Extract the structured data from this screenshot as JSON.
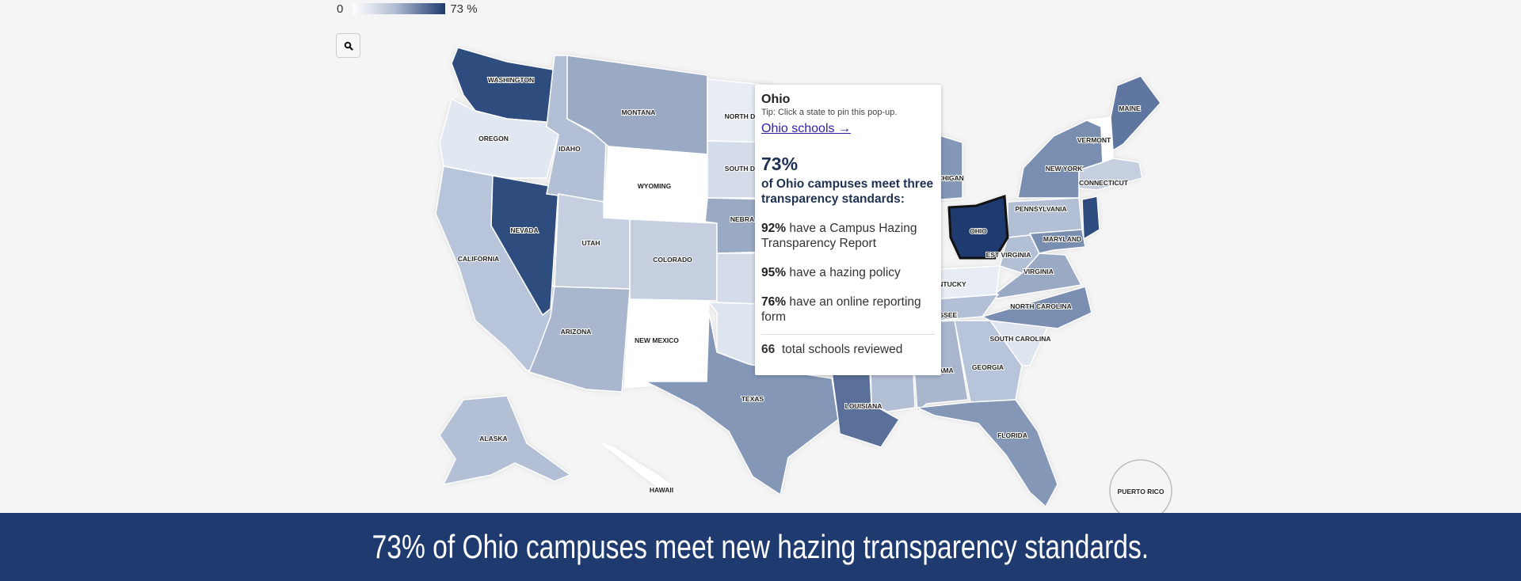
{
  "legend": {
    "min_label": "0",
    "max_label": "73 %",
    "min_color": "#ffffff",
    "max_color": "#1f3a6e"
  },
  "zoom_button": {
    "icon": "search-icon"
  },
  "states": [
    {
      "id": "WA",
      "label": "WASHINGTON",
      "fill": "#2f4c7e"
    },
    {
      "id": "OR",
      "label": "OREGON",
      "fill": "#e2e8f2"
    },
    {
      "id": "CA",
      "label": "CALIFORNIA",
      "fill": "#b8c4da"
    },
    {
      "id": "NV",
      "label": "NEVADA",
      "fill": "#2f4c7e"
    },
    {
      "id": "ID",
      "label": "IDAHO",
      "fill": "#b3bfd5"
    },
    {
      "id": "MT",
      "label": "MONTANA",
      "fill": "#9aa9c4"
    },
    {
      "id": "WY",
      "label": "WYOMING",
      "fill": "#ffffff"
    },
    {
      "id": "UT",
      "label": "UTAH",
      "fill": "#c5cfe0"
    },
    {
      "id": "CO",
      "label": "COLORADO",
      "fill": "#c5cfe0"
    },
    {
      "id": "AZ",
      "label": "ARIZONA",
      "fill": "#a9b6ce"
    },
    {
      "id": "NM",
      "label": "NEW MEXICO",
      "fill": "#ffffff"
    },
    {
      "id": "ND",
      "label": "NORTH DA",
      "fill": "#e8edf5"
    },
    {
      "id": "SD",
      "label": "SOUTH DA",
      "fill": "#d5dce9"
    },
    {
      "id": "NE",
      "label": "NEBRA",
      "fill": "#9aa9c4"
    },
    {
      "id": "KS",
      "label": "",
      "fill": "#d5dce9"
    },
    {
      "id": "OK",
      "label": "",
      "fill": "#dfe5ef"
    },
    {
      "id": "TX",
      "label": "TEXAS",
      "fill": "#8497b7"
    },
    {
      "id": "LA",
      "label": "LOUISIANA",
      "fill": "#5a709b"
    },
    {
      "id": "MS",
      "label": "",
      "fill": "#b3bfd5"
    },
    {
      "id": "AL",
      "label": "AMA",
      "fill": "#a9b6ce"
    },
    {
      "id": "GA",
      "label": "GEORGIA",
      "fill": "#b8c4da"
    },
    {
      "id": "FL",
      "label": "FLORIDA",
      "fill": "#8497b7"
    },
    {
      "id": "SC",
      "label": "SOUTH CAROLINA",
      "fill": "#dfe5ef"
    },
    {
      "id": "NC",
      "label": "NORTH CAROLINA",
      "fill": "#7a8eb1"
    },
    {
      "id": "VA",
      "label": "VIRGINIA",
      "fill": "#9aa9c4"
    },
    {
      "id": "WV",
      "label": "EST VIRGINIA",
      "fill": "#b3bfd5"
    },
    {
      "id": "KY",
      "label": "NTUCKY",
      "fill": "#e8edf5"
    },
    {
      "id": "TN",
      "label": "ESSEE",
      "fill": "#b3bfd5"
    },
    {
      "id": "MI",
      "label": "CHIGAN",
      "fill": "#8497b7"
    },
    {
      "id": "OH",
      "label": "OHIO",
      "fill": "#1f3a6e"
    },
    {
      "id": "PA",
      "label": "PENNSYLVANIA",
      "fill": "#b3bfd5"
    },
    {
      "id": "NY",
      "label": "NEW YORK",
      "fill": "#7a8eb1"
    },
    {
      "id": "VT",
      "label": "VERMONT",
      "fill": "#ffffff"
    },
    {
      "id": "ME",
      "label": "MAINE",
      "fill": "#5f76a0"
    },
    {
      "id": "MA",
      "label": "CONNECTICUT",
      "fill": "#c5cfe0"
    },
    {
      "id": "NJ",
      "label": "",
      "fill": "#2f4c7e"
    },
    {
      "id": "MD",
      "label": "MARYLAND",
      "fill": "#7a8eb1"
    },
    {
      "id": "AK",
      "label": "ALASKA",
      "fill": "#b3bfd5"
    },
    {
      "id": "HI",
      "label": "HAWAII",
      "fill": "#ffffff"
    },
    {
      "id": "PR",
      "label": "PUERTO RICO",
      "fill": "#f5f5f5"
    }
  ],
  "tooltip": {
    "state": "Ohio",
    "tip": "Tip: Click a state to pin this pop-up.",
    "link": "Ohio schools →",
    "headline_value": "73%",
    "headline_text": "of Ohio campuses meet three transparency standards:",
    "items": [
      {
        "value": "92%",
        "text": "have a Campus Hazing Transparency Report"
      },
      {
        "value": "95%",
        "text": "have a hazing policy"
      },
      {
        "value": "76%",
        "text": "have an online reporting form"
      }
    ],
    "total_value": "66",
    "total_text": "total schools reviewed"
  },
  "banner": {
    "text": "73% of Ohio campuses meet new hazing transparency standards."
  }
}
